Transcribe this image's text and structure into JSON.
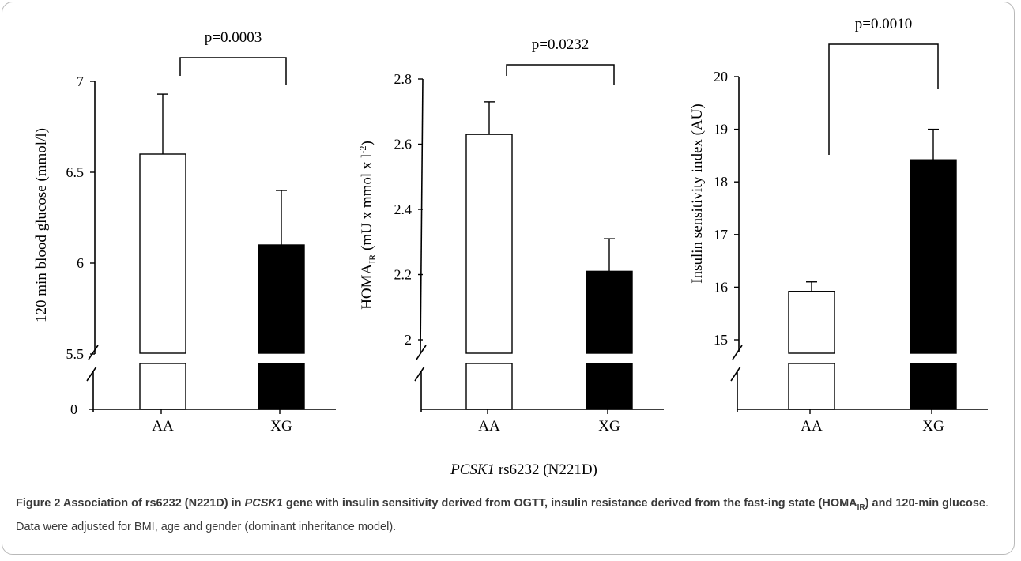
{
  "chart_data": [
    {
      "type": "bar",
      "categories": [
        "AA",
        "XG"
      ],
      "values": [
        6.6,
        6.1
      ],
      "errors": [
        6.93,
        6.4
      ],
      "ylabel": "120 min blood glucose (mmol/l)",
      "axis_break": true,
      "yticks": [
        "0",
        "5.5",
        "6",
        "6.5",
        "7"
      ],
      "ylim": [
        5.5,
        7.0
      ],
      "pvalue": "p=0.0003",
      "colors": [
        "#ffffff",
        "#000000"
      ]
    },
    {
      "type": "bar",
      "categories": [
        "AA",
        "XG"
      ],
      "values": [
        2.63,
        2.21
      ],
      "errors": [
        2.73,
        2.31
      ],
      "ylabel": "HOMA",
      "ylabel_sub": "IR",
      "ylabel_rest": " (mU x mmol x l",
      "ylabel_sup": "-2",
      "ylabel_end": ")",
      "axis_break": true,
      "yticks": [
        "2",
        "2.2",
        "2.4",
        "2.6",
        "2.8"
      ],
      "ylim": [
        2.0,
        2.8
      ],
      "pvalue": "p=0.0232",
      "colors": [
        "#ffffff",
        "#000000"
      ]
    },
    {
      "type": "bar",
      "categories": [
        "AA",
        "XG"
      ],
      "values": [
        15.92,
        18.42
      ],
      "errors": [
        16.1,
        19.0
      ],
      "ylabel": "Insulin sensitivity index (AU)",
      "axis_break": true,
      "yticks": [
        "15",
        "16",
        "17",
        "18",
        "19",
        "20"
      ],
      "ylim": [
        15,
        20
      ],
      "pvalue": "p=0.0010",
      "colors": [
        "#ffffff",
        "#000000"
      ]
    }
  ],
  "xlabel_italic": "PCSK1",
  "xlabel_rest": " rs6232 (N221D)",
  "caption": {
    "bold1": "Figure 2 Association of rs6232 (N221D) in ",
    "bold_italic": "PCSK1",
    "bold2": " gene with insulin sensitivity derived from OGTT, insulin resistance derived from the fast-ing state (HOMA",
    "bold_sub": "IR",
    "bold3": ") and 120-min glucose",
    "normal": ". Data were adjusted for BMI, age and gender (dominant inheritance model)."
  }
}
